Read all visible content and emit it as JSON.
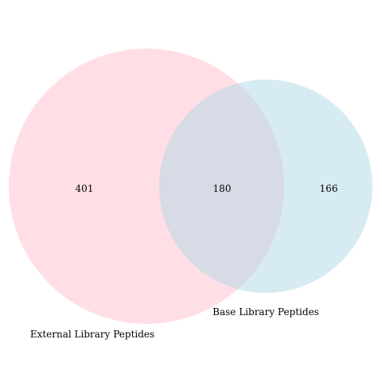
{
  "venn": {
    "sets": [
      {
        "id": "A",
        "label": "External Library Peptides",
        "color": "#ffc0cb",
        "opacity": 0.5
      },
      {
        "id": "B",
        "label": "Base Library Peptides",
        "color": "#add8e6",
        "opacity": 0.5
      }
    ],
    "regions": {
      "only_a": 401,
      "intersection": 180,
      "only_b": 166
    }
  }
}
